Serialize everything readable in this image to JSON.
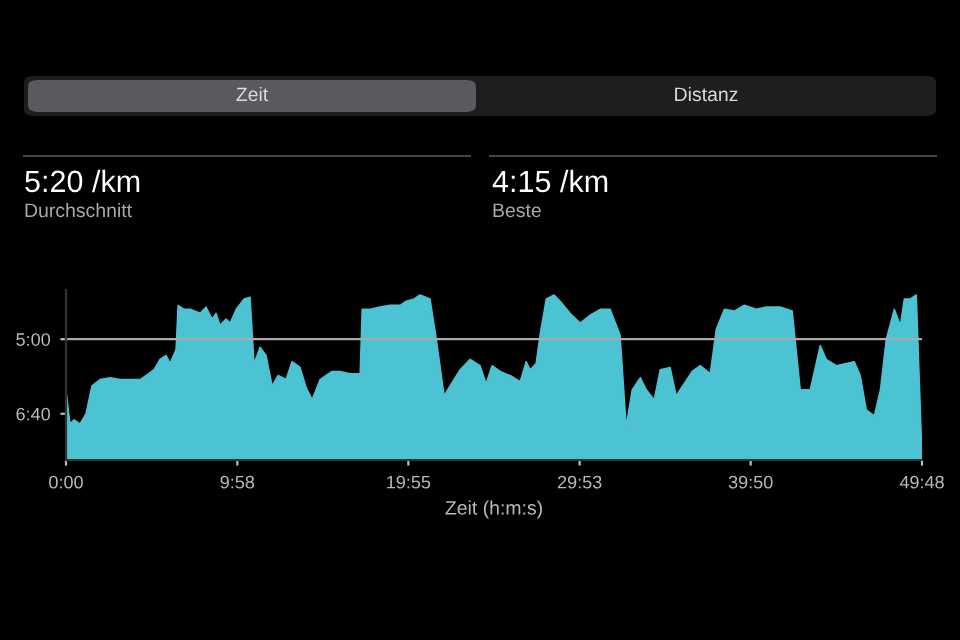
{
  "chart_data": {
    "type": "area",
    "xlabel": "Zeit (h:m:s)",
    "annotations": [
      "Zeit",
      "Distanz",
      "5:20 /km",
      "Durchschnitt",
      "4:15 /km",
      "Beste"
    ],
    "x": [
      0,
      0,
      0.23,
      0.47,
      0.81,
      1.16,
      1.51,
      1.98,
      2.56,
      3.14,
      3.72,
      4.31,
      4.66,
      5.12,
      5.47,
      5.82,
      6.05,
      6.4,
      6.52,
      6.87,
      7.22,
      7.8,
      8.15,
      8.5,
      8.73,
      8.96,
      9.31,
      9.55,
      9.9,
      10.36,
      10.71,
      10.94,
      11.29,
      11.64,
      11.99,
      12.34,
      12.8,
      13.15,
      13.62,
      13.97,
      14.32,
      14.78,
      15.13,
      15.48,
      15.95,
      16.53,
      17.11,
      17.23,
      17.69,
      18.27,
      18.86,
      19.44,
      19.79,
      20.25,
      20.6,
      21.18,
      21.53,
      22.0,
      22.35,
      22.93,
      23.51,
      24.09,
      24.44,
      24.79,
      25.26,
      25.84,
      26.42,
      26.77,
      27.0,
      27.35,
      27.59,
      27.94,
      28.4,
      28.75,
      29.33,
      29.91,
      30.5,
      31.08,
      31.66,
      32.24,
      32.59,
      32.94,
      33.41,
      33.76,
      34.22,
      34.57,
      35.15,
      35.5,
      35.97,
      36.43,
      36.9,
      37.48,
      37.83,
      38.3,
      38.88,
      39.46,
      40.16,
      40.74,
      41.55,
      42.25,
      42.72,
      43.3,
      43.88,
      44.23,
      44.81,
      45.4,
      45.86,
      46.21,
      46.56,
      47.03,
      47.38,
      47.72,
      48.19,
      48.54,
      48.77,
      49.12,
      49.47,
      49.8
    ],
    "series": [
      {
        "color": "#4cc3d3",
        "values": [
          7.7,
          6.13,
          6.89,
          6.8,
          6.89,
          6.67,
          6.04,
          5.9,
          5.86,
          5.9,
          5.9,
          5.9,
          5.81,
          5.68,
          5.45,
          5.36,
          5.54,
          5.23,
          4.24,
          4.33,
          4.33,
          4.42,
          4.28,
          4.55,
          4.42,
          4.69,
          4.55,
          4.64,
          4.33,
          4.1,
          4.06,
          5.54,
          5.18,
          5.36,
          6.04,
          5.81,
          5.9,
          5.5,
          5.63,
          6.08,
          6.35,
          5.9,
          5.81,
          5.72,
          5.72,
          5.77,
          5.77,
          4.33,
          4.33,
          4.28,
          4.24,
          4.24,
          4.15,
          4.1,
          4.01,
          4.1,
          4.96,
          6.26,
          6.04,
          5.68,
          5.45,
          5.59,
          5.99,
          5.59,
          5.72,
          5.81,
          5.95,
          5.5,
          5.68,
          5.54,
          4.87,
          4.1,
          4.01,
          4.15,
          4.42,
          4.64,
          4.46,
          4.33,
          4.33,
          4.91,
          6.94,
          6.13,
          5.86,
          6.13,
          6.35,
          5.68,
          5.63,
          6.26,
          5.99,
          5.72,
          5.59,
          5.77,
          4.78,
          4.33,
          4.37,
          4.24,
          4.33,
          4.28,
          4.28,
          4.37,
          6.13,
          6.13,
          5.14,
          5.45,
          5.59,
          5.54,
          5.5,
          5.81,
          6.58,
          6.71,
          6.13,
          5.0,
          4.33,
          4.69,
          4.1,
          4.1,
          4.01,
          7.61
        ]
      }
    ],
    "xlim": [
      0,
      49.8
    ],
    "xticks": [
      {
        "value": 0,
        "label": "0:00"
      },
      {
        "value": 9.967,
        "label": "9:58"
      },
      {
        "value": 19.917,
        "label": "19:55"
      },
      {
        "value": 29.883,
        "label": "29:53"
      },
      {
        "value": 39.833,
        "label": "39:50"
      },
      {
        "value": 49.8,
        "label": "49:48"
      }
    ],
    "ylim": [
      7.7,
      3.9
    ],
    "yticks": [
      {
        "value": 5.0,
        "label": "5:00"
      },
      {
        "value": 6.667,
        "label": "6:40"
      }
    ],
    "ref_lines": [
      {
        "axis": "y",
        "value": 5.0,
        "color": "#aaaaaa"
      }
    ],
    "grid": false
  }
}
